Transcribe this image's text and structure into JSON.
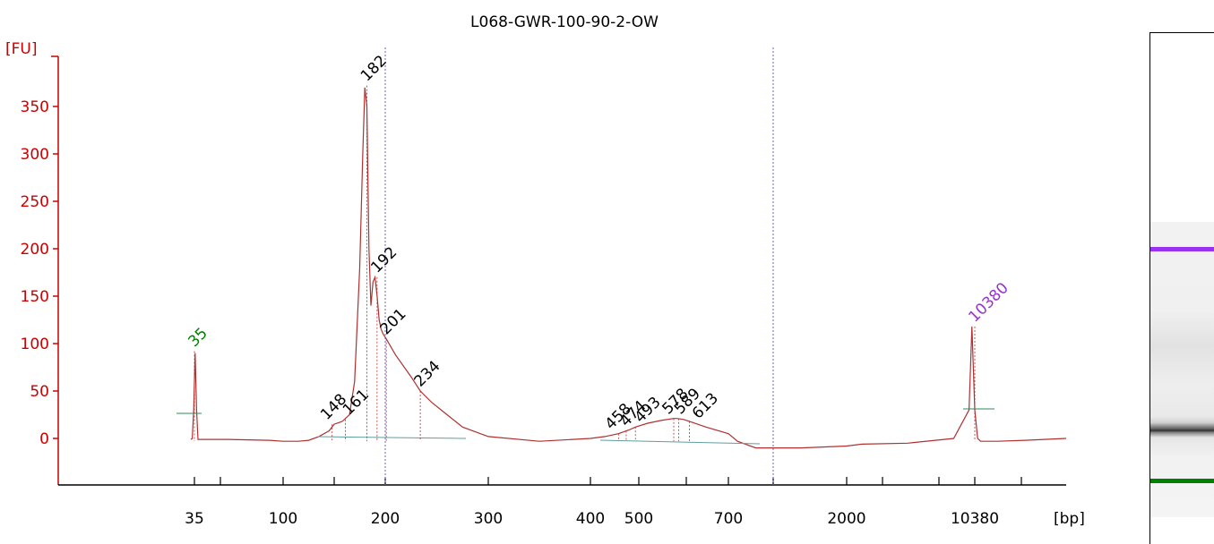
{
  "chart_data": {
    "type": "line",
    "title": "L068-GWR-100-90-2-OW",
    "ylabel": "[FU]",
    "xlabel": "[bp]",
    "ylim": [
      -50,
      400
    ],
    "y_ticks": [
      0,
      50,
      100,
      150,
      200,
      250,
      300,
      350
    ],
    "x_ticks": [
      "35",
      "100",
      "200",
      "300",
      "400",
      "500",
      "700",
      "2000",
      "10380"
    ],
    "x_scale": "ladder (non-linear)",
    "grid": false,
    "line_color": "#b03030",
    "series": [
      {
        "x": [
          35,
          35,
          35,
          35,
          35,
          35,
          60,
          90,
          100,
          115,
          125,
          135,
          145,
          150,
          158,
          165,
          170,
          175,
          178,
          180,
          182,
          184,
          186,
          188,
          190,
          192,
          194,
          196,
          198,
          201,
          210,
          225,
          234,
          245,
          260,
          275,
          300,
          350,
          400,
          430,
          458,
          480,
          493,
          520,
          550,
          578,
          585,
          600,
          613,
          650,
          700,
          800,
          1000,
          1500,
          2000,
          3000,
          6000,
          9000,
          10380,
          10380,
          10380,
          10380,
          10380,
          12000,
          14000,
          17000
        ],
        "y": [
          -1,
          0,
          30,
          90,
          30,
          -1,
          -1,
          -2,
          -3,
          -3,
          -2,
          2,
          8,
          15,
          18,
          25,
          60,
          180,
          300,
          370,
          350,
          200,
          140,
          165,
          170,
          150,
          125,
          115,
          110,
          105,
          88,
          65,
          50,
          38,
          25,
          12,
          2,
          -3,
          0,
          2,
          5,
          9,
          12,
          16,
          19,
          21,
          21,
          20,
          18,
          12,
          5,
          -3,
          -10,
          -10,
          -8,
          -6,
          -5,
          0,
          30,
          118,
          30,
          0,
          -3,
          -3,
          -2,
          0
        ]
      }
    ],
    "peak_labels": [
      {
        "label": "35",
        "x": 35,
        "y": 92,
        "color": "#008000"
      },
      {
        "label": "148",
        "x": 148,
        "y": 15,
        "color": "#000000"
      },
      {
        "label": "161",
        "x": 161,
        "y": 20,
        "color": "#000000"
      },
      {
        "label": "182",
        "x": 182,
        "y": 372,
        "color": "#000000"
      },
      {
        "label": "192",
        "x": 192,
        "y": 170,
        "color": "#000000"
      },
      {
        "label": "201",
        "x": 201,
        "y": 105,
        "color": "#000000"
      },
      {
        "label": "234",
        "x": 234,
        "y": 50,
        "color": "#000000"
      },
      {
        "label": "458",
        "x": 458,
        "y": 5,
        "color": "#000000"
      },
      {
        "label": "474",
        "x": 474,
        "y": 8,
        "color": "#000000"
      },
      {
        "label": "493",
        "x": 493,
        "y": 12,
        "color": "#000000"
      },
      {
        "label": "578",
        "x": 578,
        "y": 21,
        "color": "#000000"
      },
      {
        "label": "589",
        "x": 589,
        "y": 21,
        "color": "#000000"
      },
      {
        "label": "613",
        "x": 613,
        "y": 18,
        "color": "#000000"
      },
      {
        "label": "10380",
        "x": 10380,
        "y": 118,
        "color": "#9933cc"
      }
    ],
    "vertical_markers": [
      200,
      900
    ]
  },
  "gel": {
    "upper_marker_color": "#9933ee",
    "lower_marker_color": "#008000"
  }
}
